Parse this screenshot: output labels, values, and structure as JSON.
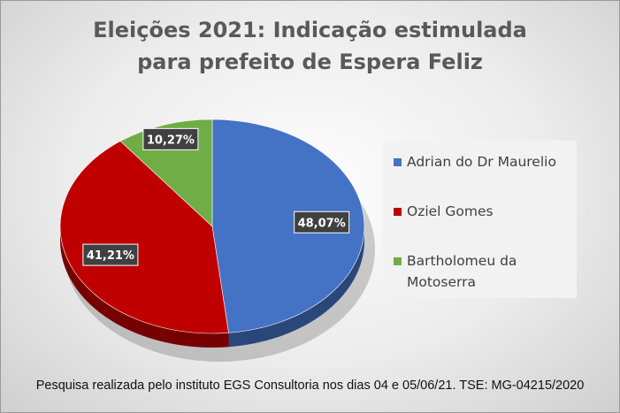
{
  "title_line1": "Eleições 2021: Indicação estimulada",
  "title_line2": "para prefeito de Espera Feliz",
  "footer": "Pesquisa realizada pelo instituto EGS Consultoria nos dias 04 e 05/06/21. TSE: MG-04215/2020",
  "chart_data": {
    "type": "pie",
    "title": "Eleições 2021: Indicação estimulada para prefeito de Espera Feliz",
    "legend_position": "right",
    "slices": [
      {
        "label": "Adrian do Dr Maurelio",
        "value": 48.07,
        "data_label": "48,07%",
        "color": "#4472C4"
      },
      {
        "label": "Oziel Gomes",
        "value": 41.21,
        "data_label": "41,21%",
        "color": "#C00000"
      },
      {
        "label": "Bartholomeu da Motoserra",
        "value": 10.27,
        "data_label": "10,27%",
        "color": "#70AD47"
      }
    ]
  }
}
